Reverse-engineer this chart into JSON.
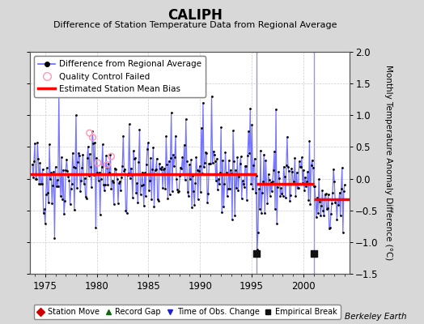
{
  "title": "CALIPH",
  "subtitle": "Difference of Station Temperature Data from Regional Average",
  "ylabel": "Monthly Temperature Anomaly Difference (°C)",
  "xlabel_credit": "Berkeley Earth",
  "xlim": [
    1973.5,
    2004.5
  ],
  "ylim": [
    -1.5,
    2.0
  ],
  "yticks": [
    -1.5,
    -1.0,
    -0.5,
    0.0,
    0.5,
    1.0,
    1.5,
    2.0
  ],
  "xticks": [
    1975,
    1980,
    1985,
    1990,
    1995,
    2000
  ],
  "background_color": "#d8d8d8",
  "plot_bg_color": "#ffffff",
  "line_color": "#6666ff",
  "dot_color": "#000000",
  "bias_color": "#ff0000",
  "vertical_line_color": "#9999bb",
  "segment_biases": [
    {
      "x_start": 1973.5,
      "x_end": 1995.5,
      "bias": 0.07
    },
    {
      "x_start": 1995.5,
      "x_end": 2001.0,
      "bias": -0.08
    },
    {
      "x_start": 2001.0,
      "x_end": 2004.5,
      "bias": -0.32
    }
  ],
  "vertical_lines": [
    1995.5,
    2001.0
  ],
  "empirical_breaks": [
    1995.5,
    2001.0
  ],
  "qc_failed_points": [
    [
      1979.3,
      0.72
    ],
    [
      1979.6,
      0.65
    ],
    [
      1980.1,
      0.25
    ],
    [
      1981.0,
      0.22
    ],
    [
      1981.4,
      0.35
    ]
  ],
  "seed": 42,
  "n_points": 365,
  "time_start": 1973.75,
  "time_end": 2004.0
}
